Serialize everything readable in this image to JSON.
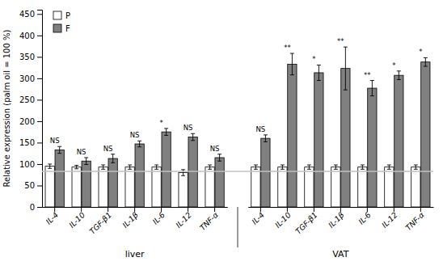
{
  "chart_data": {
    "type": "bar",
    "ylabel": "Relative expression (palm oil = 100 %)",
    "groups": [
      {
        "label": "liver",
        "categories": [
          "IL-4",
          "IL-10",
          "TGF-β1",
          "IL-1β",
          "IL-6",
          "IL-12",
          "TNF-α"
        ]
      },
      {
        "label": "VAT",
        "categories": [
          "IL-4",
          "IL-10",
          "TGF-β1",
          "IL-1β",
          "IL-6",
          "IL-12",
          "TNF-α"
        ]
      }
    ],
    "series": [
      {
        "name": "P",
        "color": "#ffffff",
        "values": [
          95,
          93,
          93,
          93,
          93,
          80,
          93,
          93,
          93,
          93,
          93,
          93,
          93,
          93
        ],
        "errors": [
          5,
          4,
          5,
          5,
          5,
          7,
          5,
          5,
          5,
          5,
          5,
          5,
          5,
          5
        ]
      },
      {
        "name": "F",
        "color": "#808080",
        "values": [
          133,
          107,
          113,
          147,
          175,
          163,
          115,
          160,
          333,
          313,
          323,
          277,
          307,
          338
        ],
        "errors": [
          8,
          8,
          10,
          7,
          8,
          8,
          8,
          8,
          25,
          18,
          50,
          18,
          10,
          10
        ]
      }
    ],
    "edge_color": "#000000",
    "significance": [
      "NS",
      "NS",
      "NS",
      "NS",
      "*",
      "NS",
      "NS",
      "NS",
      "**",
      "*",
      "**",
      "**",
      "*",
      "*"
    ],
    "reference_line": {
      "y": 83,
      "color": "#c0c0c0"
    },
    "ylim": [
      0,
      460
    ],
    "yticks": [
      0,
      50,
      100,
      150,
      200,
      250,
      300,
      350,
      400,
      450
    ],
    "grid": false,
    "legend": "upper left"
  }
}
